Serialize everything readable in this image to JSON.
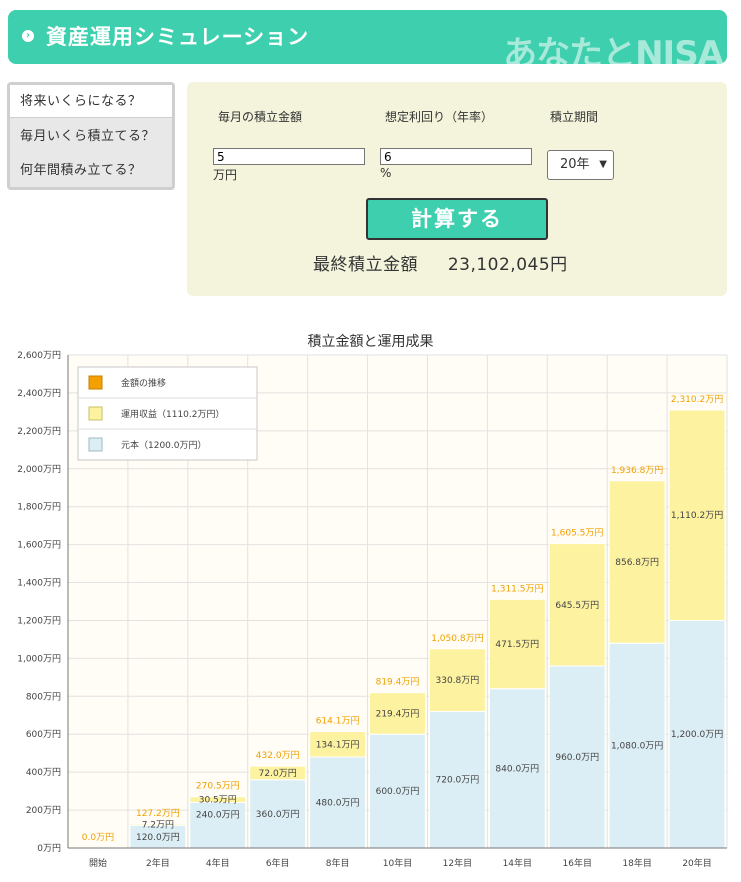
{
  "header": {
    "title": "資産運用シミュレーション",
    "logo": "あなたとNISA"
  },
  "tabs": [
    {
      "label": "将来いくらになる？",
      "active": true
    },
    {
      "label": "毎月いくら積立てる？",
      "active": false
    },
    {
      "label": "何年間積み立てる？",
      "active": false
    }
  ],
  "form": {
    "monthly_label": "毎月の積立金額",
    "rate_label": "想定利回り（年率）",
    "period_label": "積立期間",
    "monthly_value": "5",
    "monthly_unit": "万円",
    "rate_value": "6",
    "rate_unit": "%",
    "period_value": "20年",
    "calc_button": "計算する",
    "result_label": "最終積立金額",
    "result_value": "23,102,045円"
  },
  "colors": {
    "accent": "#3ecfae",
    "principal": "#dceef5",
    "gain": "#fcf2a0",
    "total_label": "#f0a000"
  },
  "chart_data": {
    "type": "bar",
    "stacked": true,
    "title": "積立金額と運用成果",
    "categories": [
      "開始",
      "2年目",
      "4年目",
      "6年目",
      "8年目",
      "10年目",
      "12年目",
      "14年目",
      "16年目",
      "18年目",
      "20年目"
    ],
    "series": [
      {
        "name": "元本（1200.0万円）",
        "values": [
          0,
          120.0,
          240.0,
          360.0,
          480.0,
          600.0,
          720.0,
          840.0,
          960.0,
          1080.0,
          1200.0
        ],
        "labels": [
          "",
          "120.0万円",
          "240.0万円",
          "360.0万円",
          "480.0万円",
          "600.0万円",
          "720.0万円",
          "840.0万円",
          "960.0万円",
          "1,080.0万円",
          "1,200.0万円"
        ]
      },
      {
        "name": "運用収益（1110.2万円）",
        "values": [
          0,
          7.2,
          30.5,
          72.0,
          134.1,
          219.4,
          330.8,
          471.5,
          645.5,
          856.8,
          1110.2
        ],
        "labels": [
          "",
          "7.2万円",
          "30.5万円",
          "72.0万円",
          "134.1万円",
          "219.4万円",
          "330.8万円",
          "471.5万円",
          "645.5万円",
          "856.8万円",
          "1,110.2万円"
        ]
      }
    ],
    "totals": {
      "name": "金額の推移",
      "labels": [
        "0.0万円",
        "127.2万円",
        "270.5万円",
        "432.0万円",
        "614.1万円",
        "819.4万円",
        "1,050.8万円",
        "1,311.5万円",
        "1,605.5万円",
        "1,936.8万円",
        "2,310.2万円"
      ]
    },
    "ylim": [
      0,
      2600
    ],
    "yticks": [
      "0万円",
      "200万円",
      "400万円",
      "600万円",
      "800万円",
      "1,000万円",
      "1,200万円",
      "1,400万円",
      "1,600万円",
      "1,800万円",
      "2,000万円",
      "2,200万円",
      "2,400万円",
      "2,600万円"
    ],
    "legend": "top-left",
    "grid": true
  }
}
